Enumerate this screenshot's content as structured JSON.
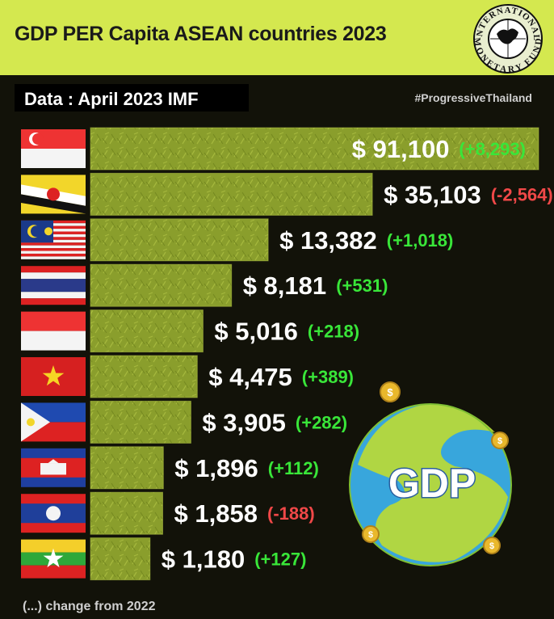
{
  "header": {
    "title": "GDP PER Capita ASEAN countries 2023",
    "seal_top_text": "INTERNATIONAL",
    "seal_bottom_text": "MONETARY FUND"
  },
  "source_label": "Data : April 2023 IMF",
  "hashtag": "#ProgressiveThailand",
  "footnote": "(...)  change from 2022",
  "globe_label": "GDP",
  "colors": {
    "header_bg": "#d4e84f",
    "bar": "#8a9e2c",
    "positive": "#39e639",
    "negative": "#f04848",
    "background": "#121209"
  },
  "chart_data": {
    "type": "bar",
    "orientation": "horizontal",
    "categories": [
      "flag-singapore",
      "flag-brunei",
      "flag-malaysia",
      "flag-thailand",
      "flag-indonesia",
      "flag-vietnam",
      "flag-philippines",
      "flag-cambodia",
      "flag-laos",
      "flag-myanmar"
    ],
    "values": [
      91100,
      35103,
      13382,
      8181,
      5016,
      4475,
      3905,
      1896,
      1858,
      1180
    ],
    "value_labels": [
      "$ 91,100",
      "$ 35,103",
      "$ 13,382",
      "$ 8,181",
      "$ 5,016",
      "$ 4,475",
      "$ 3,905",
      "$ 1,896",
      "$ 1,858",
      "$ 1,180"
    ],
    "change": [
      8293,
      -2564,
      1018,
      531,
      218,
      389,
      282,
      112,
      -188,
      127
    ],
    "change_labels": [
      "(+8,293)",
      "(-2,564)",
      "(+1,018)",
      "(+531)",
      "(+218)",
      "(+389)",
      "(+282)",
      "(+112)",
      "(-188)",
      "(+127)"
    ]
  }
}
